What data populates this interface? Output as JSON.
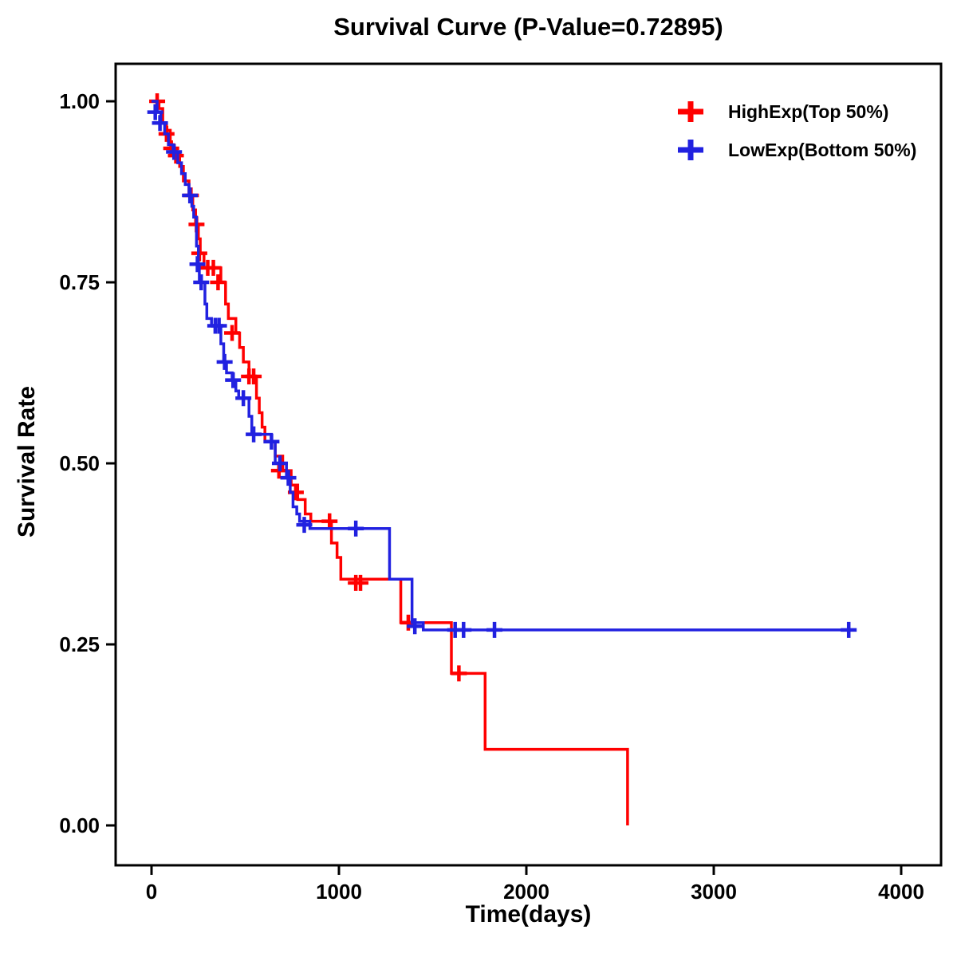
{
  "title": "Survival Curve (P-Value=0.72895)",
  "chart_data": {
    "type": "line",
    "subtype": "kaplan-meier-step",
    "title": "Survival Curve (P-Value=0.72895)",
    "p_value": "0.72895",
    "xlabel": "Time(days)",
    "ylabel": "Survival Rate",
    "xlim": [
      0,
      4000
    ],
    "ylim": [
      0.0,
      1.0
    ],
    "x_ticks": [
      0,
      1000,
      2000,
      3000,
      4000
    ],
    "x_tick_labels": [
      "0",
      "1000",
      "2000",
      "3000",
      "4000"
    ],
    "y_ticks": [
      0.0,
      0.25,
      0.5,
      0.75,
      1.0
    ],
    "y_tick_labels": [
      "0.00",
      "0.25",
      "0.50",
      "0.75",
      "1.00"
    ],
    "grid": false,
    "legend_position": "top-right",
    "axis_color": "#000000",
    "series": [
      {
        "name": "HighExp(Top 50%)",
        "color": "#FF0000",
        "steps": [
          [
            0,
            1.0
          ],
          [
            40,
            0.99
          ],
          [
            60,
            0.97
          ],
          [
            80,
            0.96
          ],
          [
            100,
            0.94
          ],
          [
            120,
            0.93
          ],
          [
            150,
            0.91
          ],
          [
            170,
            0.89
          ],
          [
            200,
            0.87
          ],
          [
            220,
            0.85
          ],
          [
            235,
            0.83
          ],
          [
            250,
            0.81
          ],
          [
            260,
            0.79
          ],
          [
            280,
            0.77
          ],
          [
            370,
            0.75
          ],
          [
            395,
            0.72
          ],
          [
            410,
            0.7
          ],
          [
            450,
            0.68
          ],
          [
            470,
            0.66
          ],
          [
            490,
            0.64
          ],
          [
            520,
            0.62
          ],
          [
            560,
            0.59
          ],
          [
            575,
            0.57
          ],
          [
            590,
            0.55
          ],
          [
            605,
            0.53
          ],
          [
            660,
            0.51
          ],
          [
            700,
            0.49
          ],
          [
            745,
            0.47
          ],
          [
            780,
            0.45
          ],
          [
            820,
            0.43
          ],
          [
            850,
            0.42
          ],
          [
            960,
            0.39
          ],
          [
            990,
            0.37
          ],
          [
            1010,
            0.34
          ],
          [
            1330,
            0.28
          ],
          [
            1600,
            0.21
          ],
          [
            1780,
            0.105
          ],
          [
            2540,
            0.0
          ]
        ],
        "censors": [
          [
            30,
            1.0
          ],
          [
            80,
            0.955
          ],
          [
            105,
            0.935
          ],
          [
            130,
            0.925
          ],
          [
            210,
            0.87
          ],
          [
            240,
            0.83
          ],
          [
            255,
            0.79
          ],
          [
            300,
            0.77
          ],
          [
            330,
            0.77
          ],
          [
            355,
            0.75
          ],
          [
            430,
            0.68
          ],
          [
            520,
            0.62
          ],
          [
            545,
            0.62
          ],
          [
            680,
            0.49
          ],
          [
            770,
            0.46
          ],
          [
            950,
            0.42
          ],
          [
            1090,
            0.335
          ],
          [
            1115,
            0.335
          ],
          [
            1370,
            0.28
          ],
          [
            1640,
            0.21
          ]
        ],
        "end_time": 2540
      },
      {
        "name": "LowExp(Bottom 50%)",
        "color": "#2121E0",
        "steps": [
          [
            0,
            1.0
          ],
          [
            30,
            0.985
          ],
          [
            50,
            0.97
          ],
          [
            70,
            0.955
          ],
          [
            90,
            0.94
          ],
          [
            115,
            0.93
          ],
          [
            140,
            0.915
          ],
          [
            160,
            0.9
          ],
          [
            180,
            0.885
          ],
          [
            200,
            0.87
          ],
          [
            215,
            0.855
          ],
          [
            225,
            0.84
          ],
          [
            240,
            0.8
          ],
          [
            250,
            0.775
          ],
          [
            255,
            0.75
          ],
          [
            285,
            0.72
          ],
          [
            295,
            0.7
          ],
          [
            320,
            0.69
          ],
          [
            370,
            0.665
          ],
          [
            385,
            0.64
          ],
          [
            400,
            0.625
          ],
          [
            430,
            0.615
          ],
          [
            450,
            0.6
          ],
          [
            465,
            0.59
          ],
          [
            520,
            0.565
          ],
          [
            535,
            0.54
          ],
          [
            640,
            0.53
          ],
          [
            660,
            0.5
          ],
          [
            720,
            0.48
          ],
          [
            740,
            0.46
          ],
          [
            755,
            0.44
          ],
          [
            775,
            0.43
          ],
          [
            790,
            0.42
          ],
          [
            845,
            0.41
          ],
          [
            1270,
            0.34
          ],
          [
            1390,
            0.28
          ],
          [
            1450,
            0.27
          ]
        ],
        "censors": [
          [
            20,
            0.985
          ],
          [
            45,
            0.97
          ],
          [
            120,
            0.93
          ],
          [
            205,
            0.87
          ],
          [
            245,
            0.775
          ],
          [
            265,
            0.75
          ],
          [
            340,
            0.69
          ],
          [
            360,
            0.69
          ],
          [
            390,
            0.64
          ],
          [
            435,
            0.615
          ],
          [
            490,
            0.59
          ],
          [
            545,
            0.54
          ],
          [
            640,
            0.53
          ],
          [
            685,
            0.5
          ],
          [
            730,
            0.48
          ],
          [
            815,
            0.415
          ],
          [
            1090,
            0.41
          ],
          [
            1405,
            0.275
          ],
          [
            1620,
            0.27
          ],
          [
            1665,
            0.27
          ],
          [
            1830,
            0.27
          ],
          [
            3720,
            0.27
          ]
        ],
        "end_time": 3720
      }
    ]
  }
}
